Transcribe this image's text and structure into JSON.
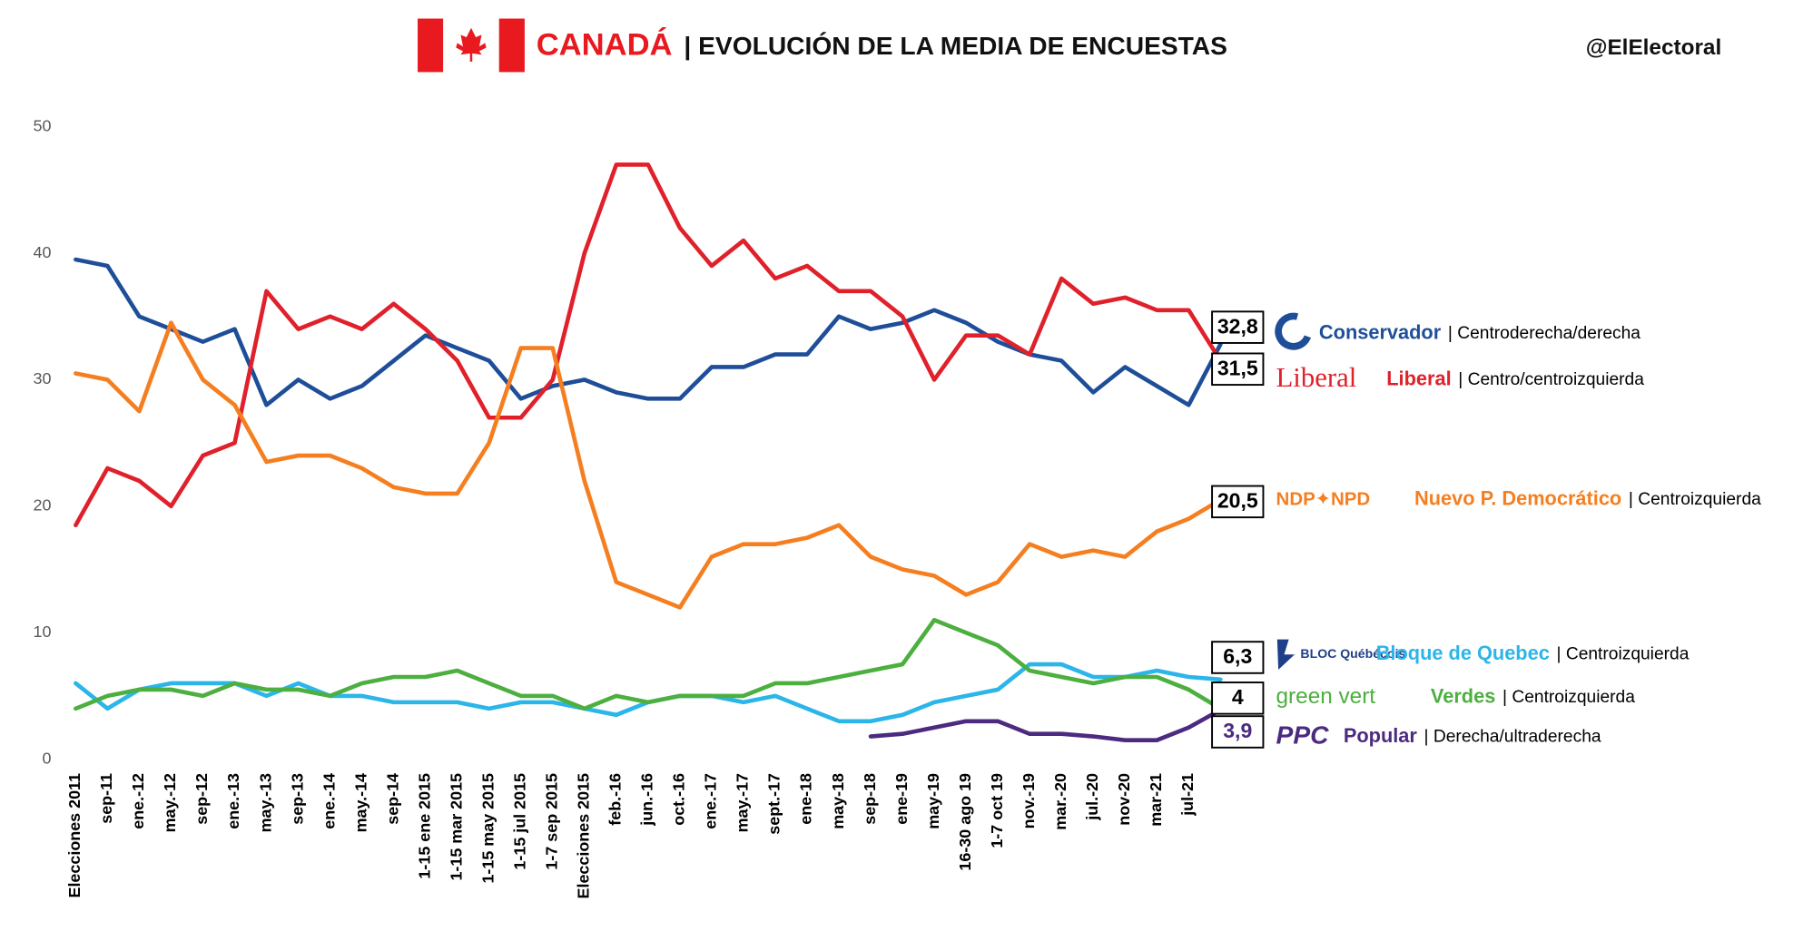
{
  "chart_data": {
    "type": "line",
    "title_country": "CANADÁ",
    "title": "| EVOLUCIÓN DE LA MEDIA DE ENCUESTAS",
    "handle": "@ElElectoral",
    "categories": [
      "Elecciones 2011",
      "sep-11",
      "ene.-12",
      "may.-12",
      "sep-12",
      "ene.-13",
      "may.-13",
      "sep-13",
      "ene.-14",
      "may.-14",
      "sep-14",
      "1-15 ene 2015",
      "1-15 mar 2015",
      "1-15 may 2015",
      "1-15 jul 2015",
      "1-7 sep 2015",
      "Elecciones 2015",
      "feb.-16",
      "jun.-16",
      "oct.-16",
      "ene.-17",
      "may.-17",
      "sept.-17",
      "ene-18",
      "may-18",
      "sep-18",
      "ene-19",
      "may-19",
      "16-30 ago 19",
      "1-7 oct 19",
      "nov.-19",
      "mar.-20",
      "jul.-20",
      "nov-20",
      "mar-21",
      "jul-21",
      null
    ],
    "ylim": [
      0,
      50
    ],
    "yticks": [
      0,
      10,
      20,
      30,
      40,
      50
    ],
    "series": [
      {
        "name": "Conservador",
        "logo": "C",
        "descriptor": "| Centroderecha/derecha",
        "color": "#1f4e99",
        "values": [
          39.5,
          39,
          35,
          34,
          33,
          34,
          28,
          30,
          28.5,
          29.5,
          31.5,
          33.5,
          32.5,
          31.5,
          28.5,
          29.5,
          30,
          29,
          28.5,
          28.5,
          31,
          31,
          32,
          32,
          35,
          34,
          34.5,
          35.5,
          34.5,
          33,
          32,
          31.5,
          29,
          31,
          29.5,
          28,
          32.8
        ],
        "value_labels": [
          null,
          null,
          null,
          null,
          null,
          null,
          null,
          null,
          null,
          null,
          null,
          null,
          null,
          null,
          null,
          null,
          null,
          null,
          null,
          null,
          null,
          null,
          null,
          null,
          null,
          null,
          null,
          null,
          null,
          null,
          null,
          null,
          null,
          null,
          null,
          null,
          "32,8"
        ]
      },
      {
        "name": "Liberal",
        "logo": "Liberal",
        "descriptor": "| Centro/centroizquierda",
        "color": "#e0202a",
        "values": [
          18.5,
          23,
          22,
          20,
          24,
          25,
          37,
          34,
          35,
          34,
          36,
          34,
          31.5,
          27,
          27,
          30,
          40,
          47,
          47,
          42,
          39,
          41,
          38,
          39,
          37,
          37,
          35,
          30,
          33.5,
          33.5,
          32,
          38,
          36,
          36.5,
          35.5,
          35.5,
          31.5
        ],
        "value_labels": [
          null,
          null,
          null,
          null,
          null,
          null,
          null,
          null,
          null,
          null,
          null,
          null,
          null,
          null,
          null,
          null,
          null,
          null,
          null,
          null,
          null,
          null,
          null,
          null,
          null,
          null,
          null,
          null,
          null,
          null,
          null,
          null,
          null,
          null,
          null,
          null,
          "31,5"
        ]
      },
      {
        "name": "Nuevo P. Democrático",
        "logo": "NDP✦NPD",
        "descriptor": "| Centroizquierda",
        "color": "#f57f20",
        "values": [
          30.5,
          30,
          27.5,
          34.5,
          30,
          28,
          23.5,
          24,
          24,
          23,
          21.5,
          21,
          21,
          25,
          32.5,
          32.5,
          22,
          14,
          13,
          12,
          16,
          17,
          17,
          17.5,
          18.5,
          16,
          15,
          14.5,
          13,
          14,
          17,
          16,
          16.5,
          16,
          18,
          19,
          20.5
        ],
        "value_labels": [
          null,
          null,
          null,
          null,
          null,
          null,
          null,
          null,
          null,
          null,
          null,
          null,
          null,
          null,
          null,
          null,
          null,
          null,
          null,
          null,
          null,
          null,
          null,
          null,
          null,
          null,
          null,
          null,
          null,
          null,
          null,
          null,
          null,
          null,
          null,
          null,
          "20,5"
        ]
      },
      {
        "name": "Bloque de Quebec",
        "logo": "BLOC Québécois",
        "descriptor": "| Centroizquierda",
        "color": "#2bb5e8",
        "values": [
          6,
          4,
          5.5,
          6,
          6,
          6,
          5,
          6,
          5,
          5,
          4.5,
          4.5,
          4.5,
          4,
          4.5,
          4.5,
          4,
          3.5,
          4.5,
          5,
          5,
          4.5,
          5,
          4,
          3,
          3,
          3.5,
          4.5,
          5,
          5.5,
          7.5,
          7.5,
          6.5,
          6.5,
          7,
          6.5,
          6.3
        ],
        "value_labels": [
          null,
          null,
          null,
          null,
          null,
          null,
          null,
          null,
          null,
          null,
          null,
          null,
          null,
          null,
          null,
          null,
          null,
          null,
          null,
          null,
          null,
          null,
          null,
          null,
          null,
          null,
          null,
          null,
          null,
          null,
          null,
          null,
          null,
          null,
          null,
          null,
          "6,3"
        ]
      },
      {
        "name": "Verdes",
        "logo": "green vert",
        "descriptor": "| Centroizquierda",
        "color": "#4caf3f",
        "values": [
          4,
          5,
          5.5,
          5.5,
          5,
          6,
          5.5,
          5.5,
          5,
          6,
          6.5,
          6.5,
          7,
          6,
          5,
          5,
          4,
          5,
          4.5,
          5,
          5,
          5,
          6,
          6,
          6.5,
          7,
          7.5,
          11,
          10,
          9,
          7,
          6.5,
          6,
          6.5,
          6.5,
          5.5,
          4
        ],
        "value_labels": [
          null,
          null,
          null,
          null,
          null,
          null,
          null,
          null,
          null,
          null,
          null,
          null,
          null,
          null,
          null,
          null,
          null,
          null,
          null,
          null,
          null,
          null,
          null,
          null,
          null,
          null,
          null,
          null,
          null,
          null,
          null,
          null,
          null,
          null,
          null,
          null,
          "4"
        ]
      },
      {
        "name": "Popular",
        "logo": "PPC",
        "descriptor": "| Derecha/ultraderecha",
        "color": "#4b2a7f",
        "values": [
          null,
          null,
          null,
          null,
          null,
          null,
          null,
          null,
          null,
          null,
          null,
          null,
          null,
          null,
          null,
          null,
          null,
          null,
          null,
          null,
          null,
          null,
          null,
          null,
          null,
          1.8,
          2,
          2.5,
          3,
          3,
          2,
          2,
          1.8,
          1.5,
          1.5,
          2.5,
          3.9
        ],
        "value_labels": [
          null,
          null,
          null,
          null,
          null,
          null,
          null,
          null,
          null,
          null,
          null,
          null,
          null,
          null,
          null,
          null,
          null,
          null,
          null,
          null,
          null,
          null,
          null,
          null,
          null,
          null,
          null,
          null,
          null,
          null,
          null,
          null,
          null,
          null,
          null,
          null,
          "3,9"
        ]
      }
    ]
  }
}
